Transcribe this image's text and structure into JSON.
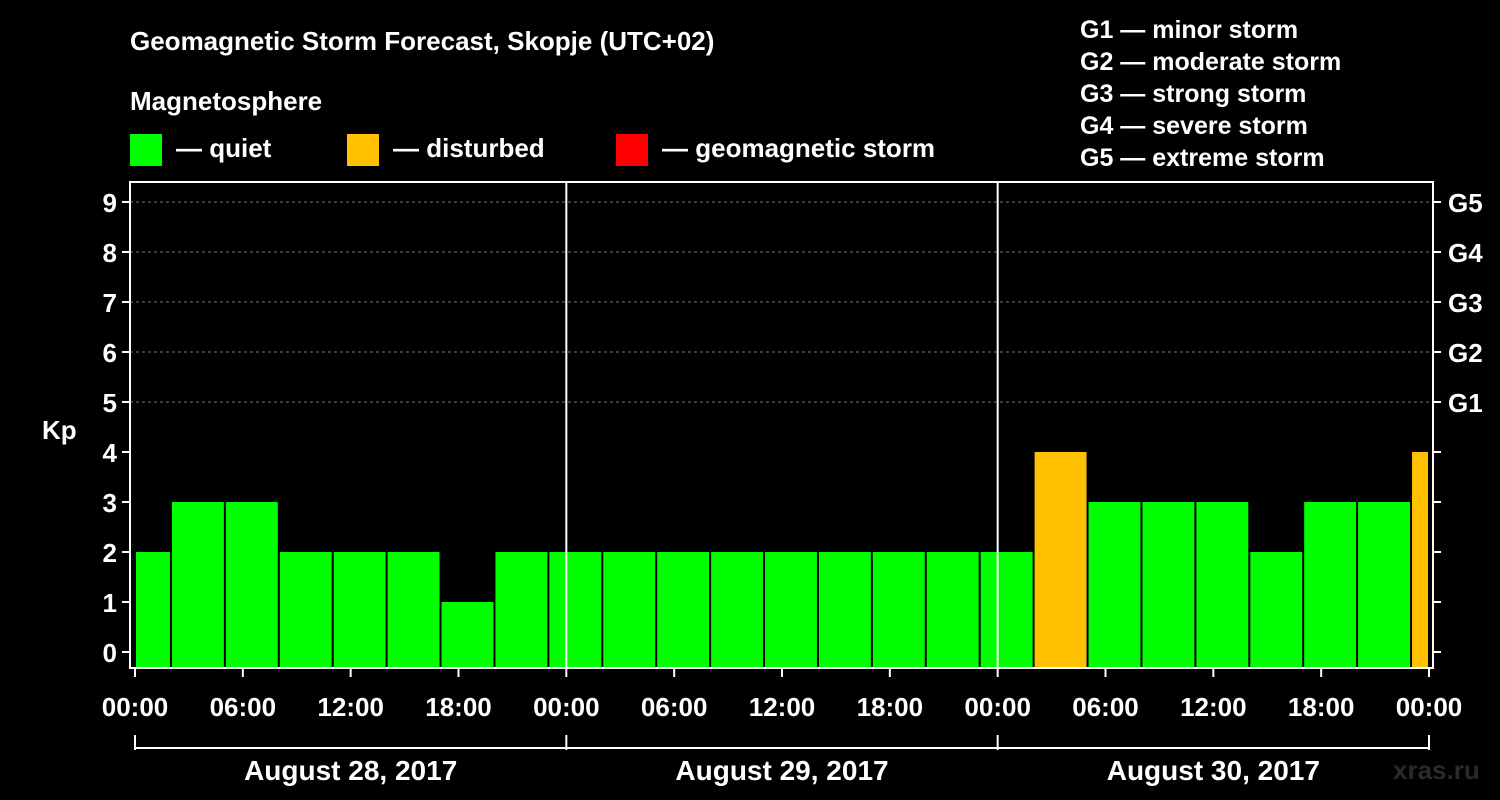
{
  "colors": {
    "quiet": "#00ff00",
    "disturbed": "#ffc000",
    "storm": "#ff0000",
    "background": "#000000",
    "foreground": "#ffffff"
  },
  "chart_data": {
    "type": "bar",
    "title": "Geomagnetic Storm Forecast, Skopje (UTC+02)",
    "ylabel": "Kp",
    "ylim": [
      0,
      9
    ],
    "watermark": "xras.ru",
    "legend": {
      "heading": "Magnetosphere",
      "entries": [
        {
          "label": "— quiet",
          "color": "#00ff00"
        },
        {
          "label": "— disturbed",
          "color": "#ffc000"
        },
        {
          "label": "— geomagnetic storm",
          "color": "#ff0000"
        }
      ]
    },
    "g_scale_legend": [
      "G1 — minor storm",
      "G2 — moderate storm",
      "G3 — strong storm",
      "G4 — severe storm",
      "G5 — extreme storm"
    ],
    "y_ticks": [
      "0",
      "1",
      "2",
      "3",
      "4",
      "5",
      "6",
      "7",
      "8",
      "9"
    ],
    "right_ticks": [
      {
        "kp": 5,
        "label": "G1"
      },
      {
        "kp": 6,
        "label": "G2"
      },
      {
        "kp": 7,
        "label": "G3"
      },
      {
        "kp": 8,
        "label": "G4"
      },
      {
        "kp": 9,
        "label": "G5"
      }
    ],
    "x_tick_labels": [
      "00:00",
      "06:00",
      "12:00",
      "18:00",
      "00:00",
      "06:00",
      "12:00",
      "18:00",
      "00:00",
      "06:00",
      "12:00",
      "18:00",
      "00:00"
    ],
    "days": [
      "August 28, 2017",
      "August 29, 2017",
      "August 30, 2017"
    ],
    "bars": [
      {
        "start_hour": -1,
        "kp": 2,
        "status": "quiet"
      },
      {
        "start_hour": 2,
        "kp": 3,
        "status": "quiet"
      },
      {
        "start_hour": 5,
        "kp": 3,
        "status": "quiet"
      },
      {
        "start_hour": 8,
        "kp": 2,
        "status": "quiet"
      },
      {
        "start_hour": 11,
        "kp": 2,
        "status": "quiet"
      },
      {
        "start_hour": 14,
        "kp": 2,
        "status": "quiet"
      },
      {
        "start_hour": 17,
        "kp": 1,
        "status": "quiet"
      },
      {
        "start_hour": 20,
        "kp": 2,
        "status": "quiet"
      },
      {
        "start_hour": 23,
        "kp": 2,
        "status": "quiet"
      },
      {
        "start_hour": 26,
        "kp": 2,
        "status": "quiet"
      },
      {
        "start_hour": 29,
        "kp": 2,
        "status": "quiet"
      },
      {
        "start_hour": 32,
        "kp": 2,
        "status": "quiet"
      },
      {
        "start_hour": 35,
        "kp": 2,
        "status": "quiet"
      },
      {
        "start_hour": 38,
        "kp": 2,
        "status": "quiet"
      },
      {
        "start_hour": 41,
        "kp": 2,
        "status": "quiet"
      },
      {
        "start_hour": 44,
        "kp": 2,
        "status": "quiet"
      },
      {
        "start_hour": 47,
        "kp": 2,
        "status": "quiet"
      },
      {
        "start_hour": 50,
        "kp": 4,
        "status": "disturbed"
      },
      {
        "start_hour": 53,
        "kp": 3,
        "status": "quiet"
      },
      {
        "start_hour": 56,
        "kp": 3,
        "status": "quiet"
      },
      {
        "start_hour": 59,
        "kp": 3,
        "status": "quiet"
      },
      {
        "start_hour": 62,
        "kp": 2,
        "status": "quiet"
      },
      {
        "start_hour": 65,
        "kp": 3,
        "status": "quiet"
      },
      {
        "start_hour": 68,
        "kp": 3,
        "status": "quiet"
      },
      {
        "start_hour": 71,
        "kp": 4,
        "status": "disturbed"
      }
    ]
  }
}
